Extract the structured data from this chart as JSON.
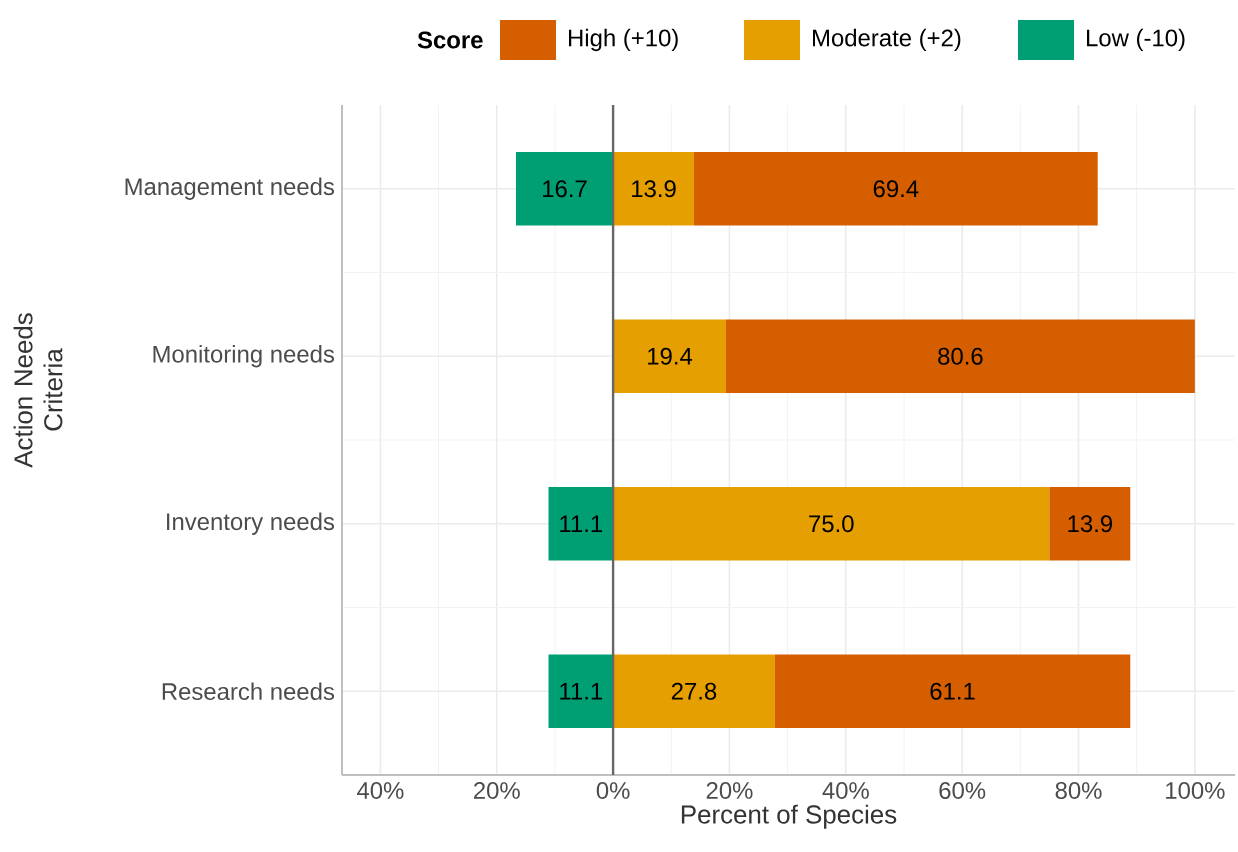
{
  "chart_data": {
    "type": "bar",
    "orientation": "horizontal",
    "stacked": true,
    "xlabel": "Percent of Species",
    "ylabel": "Action Needs Criteria",
    "legend_title": "Score",
    "legend": "top",
    "categories": [
      "Management needs",
      "Monitoring needs",
      "Inventory needs",
      "Research needs"
    ],
    "series": [
      {
        "name": "Low (-10)",
        "color": "#009e73",
        "values": [
          16.7,
          null,
          11.1,
          11.1
        ],
        "base": [
          -16.7,
          null,
          -11.1,
          -11.1
        ],
        "value_labels": [
          "16.7",
          null,
          "11.1",
          "11.1"
        ]
      },
      {
        "name": "Moderate (+2)",
        "color": "#e69f00",
        "values": [
          13.9,
          19.4,
          75.0,
          27.8
        ],
        "value_labels": [
          "13.9",
          "19.4",
          "75.0",
          "27.8"
        ]
      },
      {
        "name": "High (+10)",
        "color": "#d55e00",
        "values": [
          69.4,
          80.6,
          13.9,
          61.1
        ],
        "value_labels": [
          "69.4",
          "80.6",
          "13.9",
          "61.1"
        ]
      }
    ],
    "xlim": [
      -46.6,
      106.9
    ],
    "xticks": [
      {
        "value": -40,
        "label": "40%"
      },
      {
        "value": -20,
        "label": "20%"
      },
      {
        "value": 0,
        "label": "0%"
      },
      {
        "value": 20,
        "label": "20%"
      },
      {
        "value": 40,
        "label": "40%"
      },
      {
        "value": 60,
        "label": "60%"
      },
      {
        "value": 80,
        "label": "80%"
      },
      {
        "value": 100,
        "label": "100%"
      }
    ],
    "grid": true,
    "ref_lines": [
      {
        "axis": "x",
        "value": 0,
        "color": "#666666"
      }
    ]
  }
}
